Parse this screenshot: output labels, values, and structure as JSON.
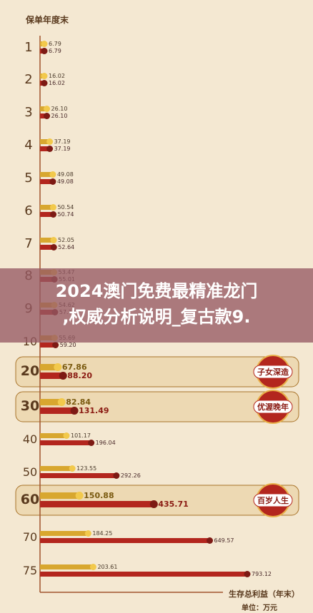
{
  "overlay": {
    "line1": "2024澳门免费最精准龙门",
    "line2": ",权威分析说明_复古款9."
  },
  "colors": {
    "background": "#f4e8d2",
    "gold": "#d8a72f",
    "red": "#b3261e",
    "highlight": "#edd9b3",
    "axis": "#a0522d"
  },
  "chart_data": {
    "type": "bar",
    "ylabel": "保单年度末",
    "xlabel": "生存总利益（年末）",
    "unit": "单位：万元",
    "categories": [
      "1",
      "2",
      "3",
      "4",
      "5",
      "6",
      "7",
      "8",
      "9",
      "10",
      "20",
      "30",
      "40",
      "50",
      "60",
      "70",
      "75"
    ],
    "series": [
      {
        "values": [
          6.79,
          16.02,
          26.1,
          37.19,
          49.08,
          50.54,
          52.05,
          53.47,
          54.62,
          55.69,
          67.86,
          82.84,
          101.17,
          123.55,
          150.88,
          184.25,
          203.61
        ],
        "labels": [
          "6.79",
          "16.02",
          "26.10",
          "37.19",
          "49.08",
          "50.54",
          "52.05",
          "53.47",
          "54.62",
          "55.69",
          "67.86",
          "82.84",
          "101.17",
          "123.55",
          "150.88",
          "184.25",
          "203.61"
        ]
      },
      {
        "values": [
          6.79,
          16.02,
          26.1,
          37.19,
          49.08,
          50.74,
          52.64,
          55.01,
          57.12,
          59.2,
          88.2,
          131.49,
          196.04,
          292.26,
          435.71,
          649.57,
          793.12
        ],
        "labels": [
          "6.79",
          "16.02",
          "26.10",
          "37.19",
          "49.08",
          "50.74",
          "52.64",
          "55.01",
          "57.12",
          "59.20",
          "88.20",
          "131.49",
          "196.04",
          "292.26",
          "435.71",
          "649.57",
          "793.12"
        ]
      }
    ],
    "highlights": [
      {
        "category": "20",
        "badge": "子女深造"
      },
      {
        "category": "30",
        "badge": "优渥晚年"
      },
      {
        "category": "60",
        "badge": "百岁人生"
      }
    ]
  }
}
